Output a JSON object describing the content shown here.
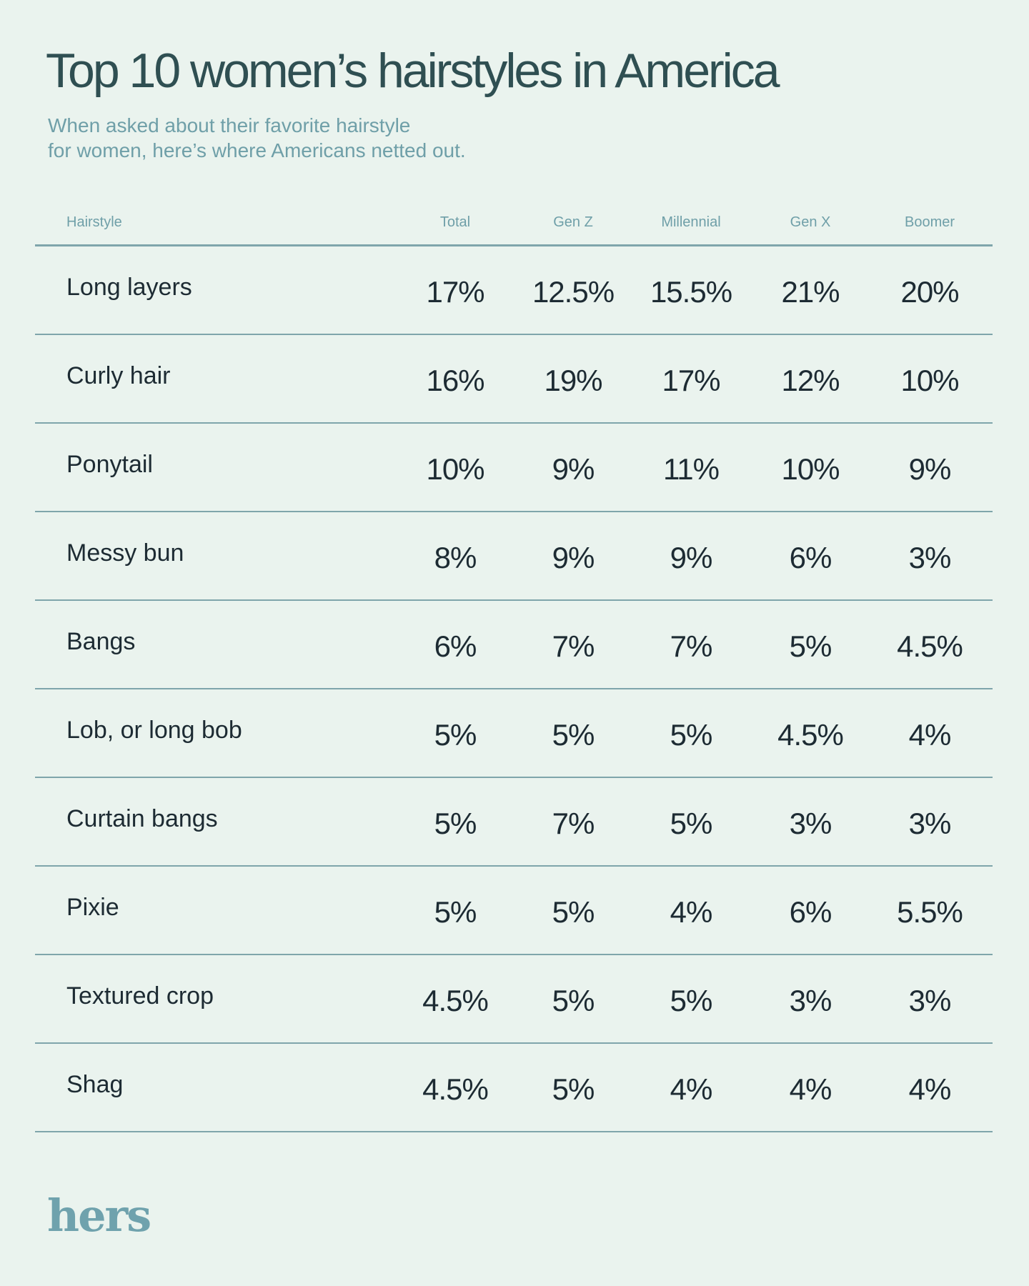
{
  "title": "Top 10 women’s hairstyles in America",
  "subtitle": [
    "When asked about their favorite hairstyle",
    "for women, here’s where Americans netted out."
  ],
  "logo": "hers",
  "colors": {
    "background": "#eaf3ee",
    "title": "#2f4f52",
    "accent": "#6f9fa8",
    "text": "#1d2b33"
  },
  "chart_data": {
    "type": "table",
    "columns": [
      "Hairstyle",
      "Total",
      "Gen Z",
      "Millennial",
      "Gen X",
      "Boomer"
    ],
    "rows": [
      [
        "Long layers",
        "17%",
        "12.5%",
        "15.5%",
        "21%",
        "20%"
      ],
      [
        "Curly hair",
        "16%",
        "19%",
        "17%",
        "12%",
        "10%"
      ],
      [
        "Ponytail",
        "10%",
        "9%",
        "11%",
        "10%",
        "9%"
      ],
      [
        "Messy bun",
        "8%",
        "9%",
        "9%",
        "6%",
        "3%"
      ],
      [
        "Bangs",
        "6%",
        "7%",
        "7%",
        "5%",
        "4.5%"
      ],
      [
        "Lob, or long bob",
        "5%",
        "5%",
        "5%",
        "4.5%",
        "4%"
      ],
      [
        "Curtain bangs",
        "5%",
        "7%",
        "5%",
        "3%",
        "3%"
      ],
      [
        "Pixie",
        "5%",
        "5%",
        "4%",
        "6%",
        "5.5%"
      ],
      [
        "Textured crop",
        "4.5%",
        "5%",
        "5%",
        "3%",
        "3%"
      ],
      [
        "Shag",
        "4.5%",
        "5%",
        "4%",
        "4%",
        "4%"
      ]
    ]
  }
}
